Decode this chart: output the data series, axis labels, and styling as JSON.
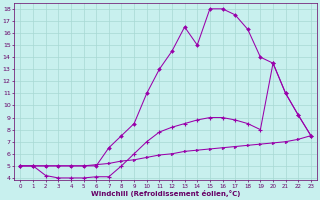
{
  "bg_color": "#c8f0ee",
  "grid_color": "#a8d8d4",
  "line_color": "#9900aa",
  "xlabel": "Windchill (Refroidissement éolien,°C)",
  "xlabel_color": "#660066",
  "tick_color": "#660066",
  "xlim": [
    -0.5,
    23.5
  ],
  "ylim": [
    3.8,
    18.5
  ],
  "xticks": [
    0,
    1,
    2,
    3,
    4,
    5,
    6,
    7,
    8,
    9,
    10,
    11,
    12,
    13,
    14,
    15,
    16,
    17,
    18,
    19,
    20,
    21,
    22,
    23
  ],
  "yticks": [
    4,
    5,
    6,
    7,
    8,
    9,
    10,
    11,
    12,
    13,
    14,
    15,
    16,
    17,
    18
  ],
  "line1_x": [
    0,
    1,
    2,
    3,
    4,
    5,
    6,
    7,
    8,
    9,
    10,
    11,
    12,
    13,
    14,
    15,
    16,
    17,
    18,
    19,
    20,
    21,
    22,
    23
  ],
  "line1_y": [
    5.0,
    5.0,
    5.0,
    5.0,
    5.0,
    5.0,
    5.1,
    5.2,
    5.4,
    5.5,
    5.7,
    5.9,
    6.0,
    6.2,
    6.3,
    6.4,
    6.5,
    6.6,
    6.7,
    6.8,
    6.9,
    7.0,
    7.2,
    7.5
  ],
  "line2_x": [
    0,
    1,
    2,
    3,
    4,
    5,
    6,
    7,
    8,
    9,
    10,
    11,
    12,
    13,
    14,
    15,
    16,
    17,
    18,
    19,
    20,
    21,
    22,
    23
  ],
  "line2_y": [
    5.0,
    5.0,
    4.2,
    4.0,
    4.0,
    4.0,
    4.1,
    4.1,
    5.0,
    6.0,
    7.0,
    7.8,
    8.2,
    8.5,
    8.8,
    9.0,
    9.0,
    8.8,
    8.5,
    8.0,
    13.5,
    11.0,
    9.2,
    7.5
  ],
  "line3_x": [
    0,
    1,
    2,
    3,
    4,
    5,
    6,
    7,
    8,
    9,
    10,
    11,
    12,
    13,
    14,
    15,
    16,
    17,
    18,
    19,
    20,
    21,
    22,
    23
  ],
  "line3_y": [
    5.0,
    5.0,
    5.0,
    5.0,
    5.0,
    5.0,
    5.0,
    6.5,
    7.5,
    8.5,
    11.0,
    13.0,
    14.5,
    16.5,
    15.0,
    18.0,
    18.0,
    17.5,
    16.3,
    14.0,
    13.5,
    11.0,
    9.2,
    7.5
  ]
}
